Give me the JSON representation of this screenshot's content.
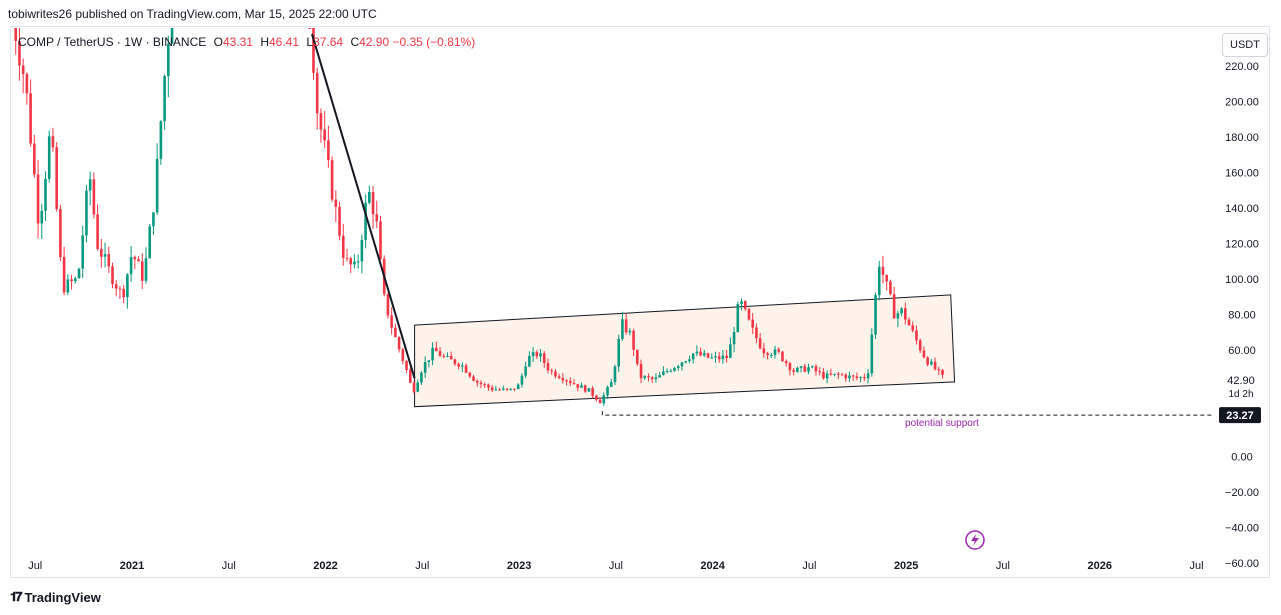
{
  "header": {
    "published": "tobiwrites26 published on TradingView.com, Mar 15, 2025 22:00 UTC"
  },
  "legend": {
    "symbol": "COMP / TetherUS · 1W · BINANCE",
    "o_label": "O",
    "o_value": "43.31",
    "h_label": "H",
    "h_value": "46.41",
    "l_label": "L",
    "l_value": "37.64",
    "c_label": "C",
    "c_value": "42.90",
    "change": "−0.35 (−0.81%)"
  },
  "currency_button": "USDT",
  "footer": {
    "logo_mark": "𝟏𝟕",
    "logo_text": "TradingView"
  },
  "colors": {
    "up": "#089981",
    "down": "#f23645",
    "channel_fill": "#fdf3ea",
    "price_tag_bg": "#131722",
    "annotation": "#9c27b0"
  },
  "chart_data": {
    "type": "candlestick",
    "symbol": "COMP / TetherUS",
    "interval": "1W",
    "exchange": "BINANCE",
    "currency": "USDT",
    "y_axis": {
      "ticks": [
        220,
        200,
        180,
        160,
        140,
        120,
        100,
        80,
        60,
        0,
        -20,
        -40,
        -60
      ],
      "tick_labels": [
        "220.00",
        "200.00",
        "180.00",
        "160.00",
        "140.00",
        "120.00",
        "100.00",
        "80.00",
        "60.00",
        "0.00",
        "−20.00",
        "−40.00",
        "−60.00"
      ],
      "range": [
        -68,
        242
      ]
    },
    "x_axis": {
      "range": [
        2020.38,
        2026.58
      ],
      "ticks": [
        {
          "t": 2020.5,
          "label": "Jul",
          "bold": false
        },
        {
          "t": 2021.0,
          "label": "2021",
          "bold": true
        },
        {
          "t": 2021.5,
          "label": "Jul",
          "bold": false
        },
        {
          "t": 2022.0,
          "label": "2022",
          "bold": true
        },
        {
          "t": 2022.5,
          "label": "Jul",
          "bold": false
        },
        {
          "t": 2023.0,
          "label": "2023",
          "bold": true
        },
        {
          "t": 2023.5,
          "label": "Jul",
          "bold": false
        },
        {
          "t": 2024.0,
          "label": "2024",
          "bold": true
        },
        {
          "t": 2024.5,
          "label": "Jul",
          "bold": false
        },
        {
          "t": 2025.0,
          "label": "2025",
          "bold": true
        },
        {
          "t": 2025.5,
          "label": "Jul",
          "bold": false
        },
        {
          "t": 2026.0,
          "label": "2026",
          "bold": true
        },
        {
          "t": 2026.5,
          "label": "Jul",
          "bold": false
        }
      ]
    },
    "price_path": [
      [
        2020.38,
        250
      ],
      [
        2020.45,
        210
      ],
      [
        2020.52,
        130
      ],
      [
        2020.58,
        185
      ],
      [
        2020.64,
        95
      ],
      [
        2020.72,
        100
      ],
      [
        2020.78,
        160
      ],
      [
        2020.82,
        120
      ],
      [
        2020.88,
        105
      ],
      [
        2020.95,
        90
      ],
      [
        2021.0,
        115
      ],
      [
        2021.06,
        100
      ],
      [
        2021.12,
        150
      ],
      [
        2021.18,
        230
      ],
      [
        2021.25,
        300
      ],
      [
        2021.9,
        300
      ],
      [
        2021.95,
        200
      ],
      [
        2022.0,
        170
      ],
      [
        2022.05,
        140
      ],
      [
        2022.1,
        110
      ],
      [
        2022.16,
        105
      ],
      [
        2022.22,
        150
      ],
      [
        2022.26,
        135
      ],
      [
        2022.3,
        90
      ],
      [
        2022.35,
        70
      ],
      [
        2022.42,
        48
      ],
      [
        2022.45,
        36
      ],
      [
        2022.5,
        50
      ],
      [
        2022.56,
        60
      ],
      [
        2022.62,
        55
      ],
      [
        2022.7,
        52
      ],
      [
        2022.78,
        42
      ],
      [
        2022.86,
        38
      ],
      [
        2022.95,
        37
      ],
      [
        2023.0,
        40
      ],
      [
        2023.04,
        55
      ],
      [
        2023.1,
        58
      ],
      [
        2023.16,
        48
      ],
      [
        2023.22,
        45
      ],
      [
        2023.3,
        40
      ],
      [
        2023.36,
        37
      ],
      [
        2023.42,
        31
      ],
      [
        2023.48,
        42
      ],
      [
        2023.53,
        75
      ],
      [
        2023.58,
        68
      ],
      [
        2023.62,
        45
      ],
      [
        2023.7,
        43
      ],
      [
        2023.76,
        48
      ],
      [
        2023.82,
        52
      ],
      [
        2023.9,
        58
      ],
      [
        2024.0,
        55
      ],
      [
        2024.08,
        56
      ],
      [
        2024.14,
        88
      ],
      [
        2024.2,
        72
      ],
      [
        2024.26,
        60
      ],
      [
        2024.34,
        58
      ],
      [
        2024.42,
        48
      ],
      [
        2024.5,
        50
      ],
      [
        2024.58,
        45
      ],
      [
        2024.66,
        46
      ],
      [
        2024.74,
        44
      ],
      [
        2024.8,
        45
      ],
      [
        2024.86,
        110
      ],
      [
        2024.9,
        95
      ],
      [
        2024.94,
        80
      ],
      [
        2024.98,
        82
      ],
      [
        2025.04,
        68
      ],
      [
        2025.1,
        55
      ],
      [
        2025.16,
        48
      ],
      [
        2025.2,
        42.9
      ]
    ],
    "channel": {
      "upper": [
        [
          2022.46,
          74
        ],
        [
          2025.23,
          91
        ]
      ],
      "lower": [
        [
          2022.46,
          28
        ],
        [
          2025.25,
          42
        ]
      ]
    },
    "trend_line": [
      [
        2021.93,
        238
      ],
      [
        2022.46,
        44
      ]
    ],
    "support": {
      "value": 23.27,
      "label": "potential support",
      "start": 2023.43
    },
    "last_price": {
      "value": "42.90",
      "countdown": "1d 2h"
    },
    "support_tag": "23.27"
  }
}
